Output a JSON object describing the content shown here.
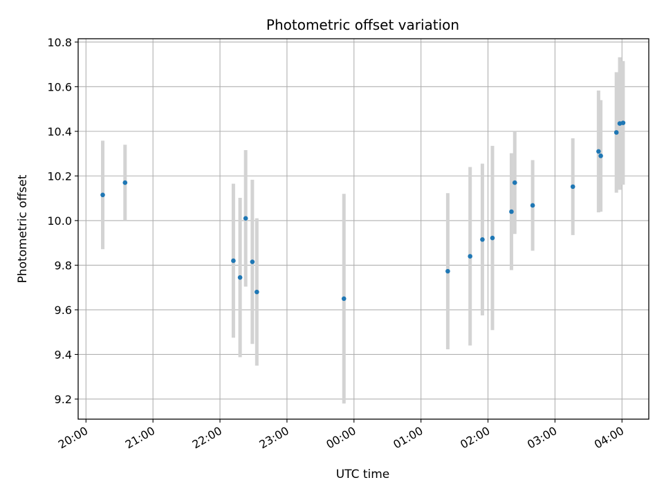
{
  "chart_data": {
    "type": "scatter",
    "title": "Photometric offset variation",
    "xlabel": "UTC time",
    "ylabel": "Photometric offset",
    "x_axis_kind": "time",
    "x_ticks": [
      "20:00",
      "21:00",
      "22:00",
      "23:00",
      "00:00",
      "01:00",
      "02:00",
      "03:00",
      "04:00"
    ],
    "xlim": [
      "19:53",
      "04:24"
    ],
    "ylim": [
      9.11,
      10.815
    ],
    "y_ticks": [
      9.2,
      9.4,
      9.6,
      9.8,
      10.0,
      10.2,
      10.4,
      10.6,
      10.8
    ],
    "grid": true,
    "colors": {
      "points": "#1f77b4",
      "errorbars": "#d3d3d3",
      "grid": "#b0b0b0"
    },
    "points": [
      {
        "x": "20:15",
        "y": 10.115,
        "yerr": 0.243
      },
      {
        "x": "20:35",
        "y": 10.17,
        "yerr": 0.17
      },
      {
        "x": "22:12",
        "y": 9.82,
        "yerr": 0.345
      },
      {
        "x": "22:18",
        "y": 9.745,
        "yerr": 0.357
      },
      {
        "x": "22:23",
        "y": 10.01,
        "yerr": 0.306
      },
      {
        "x": "22:29",
        "y": 9.815,
        "yerr": 0.368
      },
      {
        "x": "22:33",
        "y": 9.68,
        "yerr": 0.33
      },
      {
        "x": "23:51",
        "y": 9.65,
        "yerr": 0.47
      },
      {
        "x": "01:24",
        "y": 9.773,
        "yerr": 0.35
      },
      {
        "x": "01:44",
        "y": 9.84,
        "yerr": 0.4
      },
      {
        "x": "01:55",
        "y": 9.915,
        "yerr": 0.34
      },
      {
        "x": "02:04",
        "y": 9.922,
        "yerr": 0.413
      },
      {
        "x": "02:21",
        "y": 10.04,
        "yerr": 0.262
      },
      {
        "x": "02:24",
        "y": 10.17,
        "yerr": 0.23
      },
      {
        "x": "02:40",
        "y": 10.068,
        "yerr": 0.203
      },
      {
        "x": "03:16",
        "y": 10.152,
        "yerr": 0.217
      },
      {
        "x": "03:39",
        "y": 10.31,
        "yerr": 0.273
      },
      {
        "x": "03:41",
        "y": 10.29,
        "yerr": 0.25
      },
      {
        "x": "03:55",
        "y": 10.395,
        "yerr": 0.27
      },
      {
        "x": "03:58",
        "y": 10.435,
        "yerr": 0.297
      },
      {
        "x": "04:01",
        "y": 10.438,
        "yerr": 0.277
      }
    ]
  }
}
